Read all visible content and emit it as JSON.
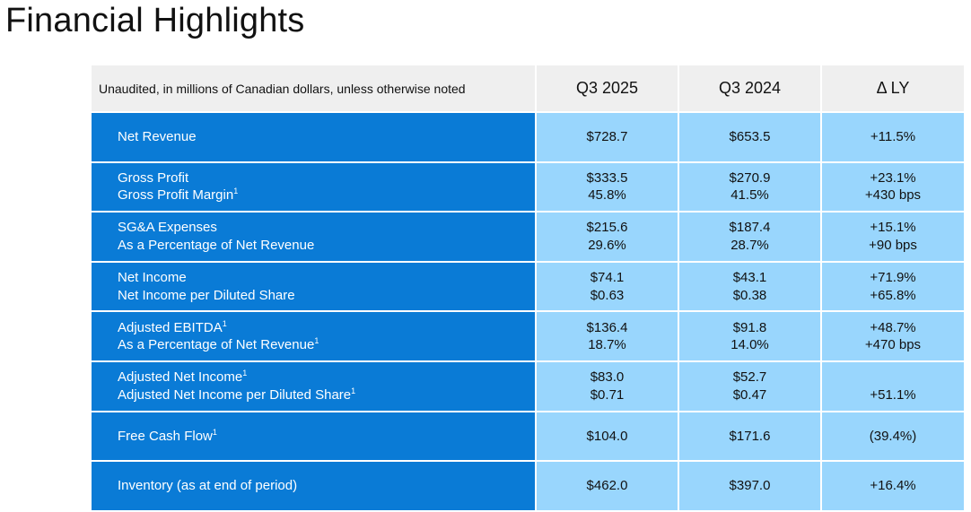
{
  "title": "Financial Highlights",
  "table": {
    "note": "Unaudited, in millions of Canadian dollars, unless otherwise noted",
    "columns": [
      "Q3 2025",
      "Q3 2024",
      "Δ LY"
    ],
    "rows": [
      {
        "labels": [
          {
            "text": "Net Revenue",
            "sup": ""
          }
        ],
        "q3_2025": [
          "$728.7"
        ],
        "q3_2024": [
          "$653.5"
        ],
        "delta": [
          "+11.5%"
        ]
      },
      {
        "labels": [
          {
            "text": "Gross Profit",
            "sup": ""
          },
          {
            "text": "Gross Profit Margin",
            "sup": "1"
          }
        ],
        "q3_2025": [
          "$333.5",
          "45.8%"
        ],
        "q3_2024": [
          "$270.9",
          "41.5%"
        ],
        "delta": [
          "+23.1%",
          "+430 bps"
        ]
      },
      {
        "labels": [
          {
            "text": "SG&A Expenses",
            "sup": ""
          },
          {
            "text": "As a Percentage of Net Revenue",
            "sup": ""
          }
        ],
        "q3_2025": [
          "$215.6",
          "29.6%"
        ],
        "q3_2024": [
          "$187.4",
          "28.7%"
        ],
        "delta": [
          "+15.1%",
          "+90 bps"
        ]
      },
      {
        "labels": [
          {
            "text": "Net Income",
            "sup": ""
          },
          {
            "text": "Net Income per Diluted Share",
            "sup": ""
          }
        ],
        "q3_2025": [
          "$74.1",
          "$0.63"
        ],
        "q3_2024": [
          "$43.1",
          "$0.38"
        ],
        "delta": [
          "+71.9%",
          "+65.8%"
        ]
      },
      {
        "labels": [
          {
            "text": "Adjusted EBITDA",
            "sup": "1"
          },
          {
            "text": "As a Percentage of Net Revenue",
            "sup": "1"
          }
        ],
        "q3_2025": [
          "$136.4",
          "18.7%"
        ],
        "q3_2024": [
          "$91.8",
          "14.0%"
        ],
        "delta": [
          "+48.7%",
          "+470 bps"
        ]
      },
      {
        "labels": [
          {
            "text": "Adjusted Net Income",
            "sup": "1"
          },
          {
            "text": "Adjusted Net Income per Diluted Share",
            "sup": "1"
          }
        ],
        "q3_2025": [
          "$83.0",
          "$0.71"
        ],
        "q3_2024": [
          "$52.7",
          "$0.47"
        ],
        "delta": [
          "",
          "+51.1%"
        ]
      },
      {
        "labels": [
          {
            "text": "Free Cash Flow",
            "sup": "1"
          }
        ],
        "q3_2025": [
          "$104.0"
        ],
        "q3_2024": [
          "$171.6"
        ],
        "delta": [
          "(39.4%)"
        ]
      },
      {
        "labels": [
          {
            "text": "Inventory (as at end of period)",
            "sup": ""
          }
        ],
        "q3_2025": [
          "$462.0"
        ],
        "q3_2024": [
          "$397.0"
        ],
        "delta": [
          "+16.4%"
        ]
      }
    ]
  },
  "colors": {
    "header_bg": "#efefef",
    "label_bg": "#0a7bd6",
    "value_bg": "#99d6fd"
  }
}
